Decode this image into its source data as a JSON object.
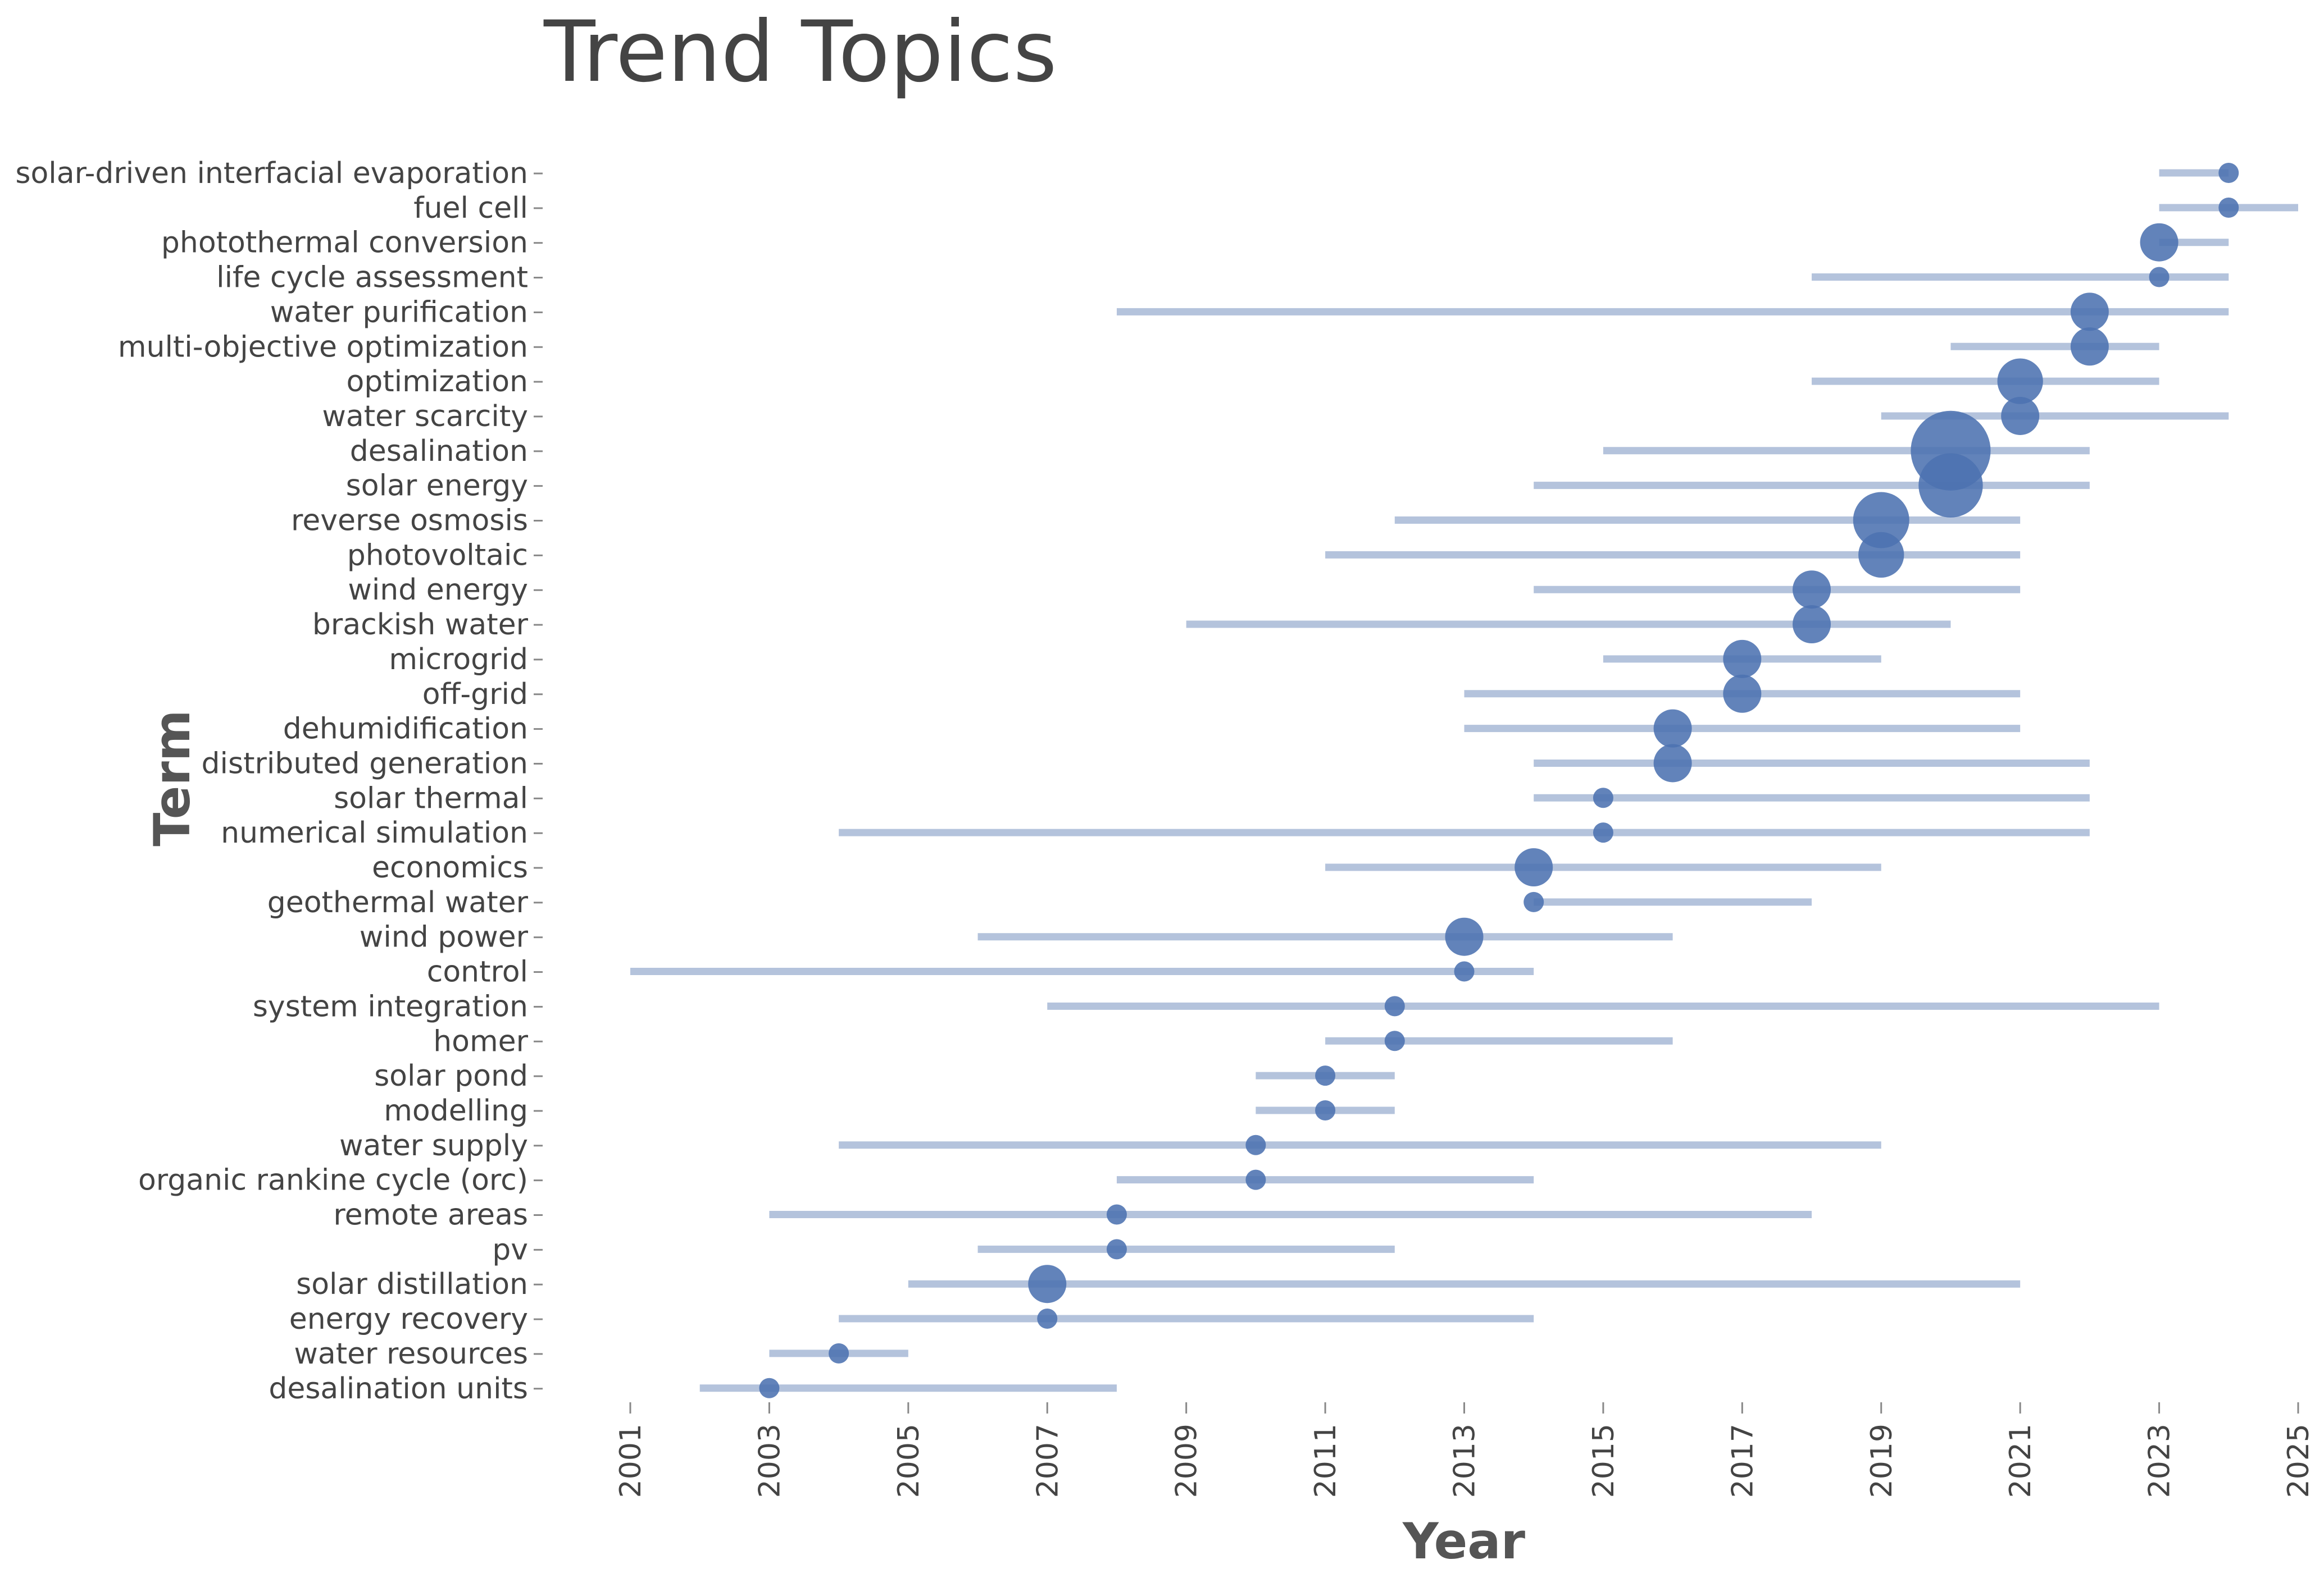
{
  "chart_data": {
    "type": "scatter",
    "title": "Trend Topics",
    "xlabel": "Year",
    "ylabel": "Term",
    "xlim": [
      2001,
      2025
    ],
    "x_ticks": [
      2001,
      2003,
      2005,
      2007,
      2009,
      2011,
      2013,
      2015,
      2017,
      2019,
      2021,
      2023,
      2025
    ],
    "grid": false,
    "colors": {
      "point": "#4c72b0",
      "range": "#b4c3dc",
      "axis_text": "#444444",
      "tick": "#888888"
    },
    "terms": [
      {
        "term": "solar-driven interfacial evaporation",
        "q1": 2023,
        "median": 2024,
        "q3": 2024,
        "freq": 1
      },
      {
        "term": "fuel cell",
        "q1": 2023,
        "median": 2024,
        "q3": 2025,
        "freq": 1
      },
      {
        "term": "photothermal conversion",
        "q1": 2023,
        "median": 2023,
        "q3": 2024,
        "freq": 2
      },
      {
        "term": "life cycle assessment",
        "q1": 2018,
        "median": 2023,
        "q3": 2024,
        "freq": 1
      },
      {
        "term": "water purification",
        "q1": 2008,
        "median": 2022,
        "q3": 2024,
        "freq": 2
      },
      {
        "term": "multi-objective optimization",
        "q1": 2020,
        "median": 2022,
        "q3": 2023,
        "freq": 2
      },
      {
        "term": "optimization",
        "q1": 2018,
        "median": 2021,
        "q3": 2023,
        "freq": 3
      },
      {
        "term": "water scarcity",
        "q1": 2019,
        "median": 2021,
        "q3": 2024,
        "freq": 2
      },
      {
        "term": "desalination",
        "q1": 2015,
        "median": 2020,
        "q3": 2022,
        "freq": 12
      },
      {
        "term": "solar energy",
        "q1": 2014,
        "median": 2020,
        "q3": 2022,
        "freq": 7
      },
      {
        "term": "reverse osmosis",
        "q1": 2012,
        "median": 2019,
        "q3": 2021,
        "freq": 5
      },
      {
        "term": "photovoltaic",
        "q1": 2011,
        "median": 2019,
        "q3": 2021,
        "freq": 3
      },
      {
        "term": "wind energy",
        "q1": 2014,
        "median": 2018,
        "q3": 2021,
        "freq": 2
      },
      {
        "term": "brackish water",
        "q1": 2009,
        "median": 2018,
        "q3": 2020,
        "freq": 2
      },
      {
        "term": "microgrid",
        "q1": 2015,
        "median": 2017,
        "q3": 2019,
        "freq": 2
      },
      {
        "term": "off-grid",
        "q1": 2013,
        "median": 2017,
        "q3": 2021,
        "freq": 2
      },
      {
        "term": "dehumidification",
        "q1": 2013,
        "median": 2016,
        "q3": 2021,
        "freq": 2
      },
      {
        "term": "distributed generation",
        "q1": 2014,
        "median": 2016,
        "q3": 2022,
        "freq": 2
      },
      {
        "term": "solar thermal",
        "q1": 2014,
        "median": 2015,
        "q3": 2022,
        "freq": 1
      },
      {
        "term": "numerical simulation",
        "q1": 2004,
        "median": 2015,
        "q3": 2022,
        "freq": 1
      },
      {
        "term": "economics",
        "q1": 2011,
        "median": 2014,
        "q3": 2019,
        "freq": 2
      },
      {
        "term": "geothermal water",
        "q1": 2014,
        "median": 2014,
        "q3": 2018,
        "freq": 1
      },
      {
        "term": "wind power",
        "q1": 2006,
        "median": 2013,
        "q3": 2016,
        "freq": 2
      },
      {
        "term": "control",
        "q1": 2001,
        "median": 2013,
        "q3": 2014,
        "freq": 1
      },
      {
        "term": "system integration",
        "q1": 2007,
        "median": 2012,
        "q3": 2023,
        "freq": 1
      },
      {
        "term": "homer",
        "q1": 2011,
        "median": 2012,
        "q3": 2016,
        "freq": 1
      },
      {
        "term": "solar pond",
        "q1": 2010,
        "median": 2011,
        "q3": 2012,
        "freq": 1
      },
      {
        "term": "modelling",
        "q1": 2010,
        "median": 2011,
        "q3": 2012,
        "freq": 1
      },
      {
        "term": "water supply",
        "q1": 2004,
        "median": 2010,
        "q3": 2019,
        "freq": 1
      },
      {
        "term": "organic rankine cycle (orc)",
        "q1": 2008,
        "median": 2010,
        "q3": 2014,
        "freq": 1
      },
      {
        "term": "remote areas",
        "q1": 2003,
        "median": 2008,
        "q3": 2018,
        "freq": 1
      },
      {
        "term": "pv",
        "q1": 2006,
        "median": 2008,
        "q3": 2012,
        "freq": 1
      },
      {
        "term": "solar distillation",
        "q1": 2005,
        "median": 2007,
        "q3": 2021,
        "freq": 2
      },
      {
        "term": "energy recovery",
        "q1": 2004,
        "median": 2007,
        "q3": 2014,
        "freq": 1
      },
      {
        "term": "water resources",
        "q1": 2003,
        "median": 2004,
        "q3": 2005,
        "freq": 1
      },
      {
        "term": "desalination units",
        "q1": 2002,
        "median": 2003,
        "q3": 2008,
        "freq": 1
      }
    ]
  }
}
